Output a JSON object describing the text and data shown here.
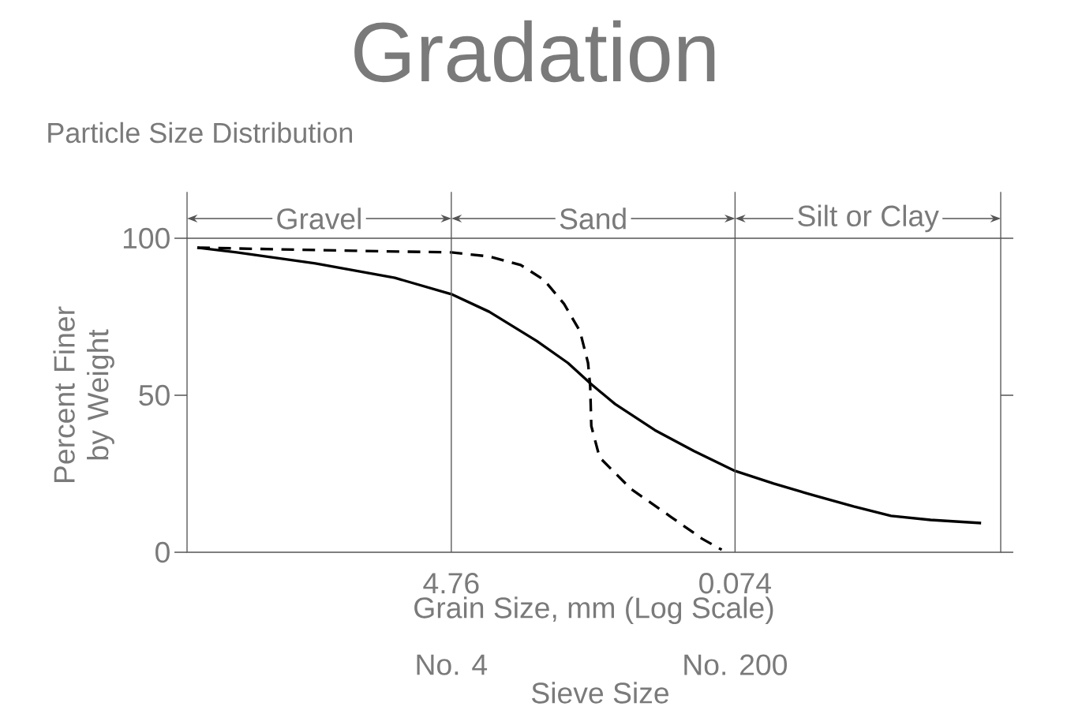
{
  "chart_data": {
    "type": "line",
    "title": "Gradation",
    "subtitle": "Particle Size Distribution",
    "xlabel": "Grain Size, mm (Log Scale)",
    "ylabel": "Percent Finer by Weight",
    "log": "x",
    "xlim": [
      230,
      0.0015
    ],
    "ylim": [
      0,
      100
    ],
    "xticks": [
      4.76,
      0.074
    ],
    "yticks": [
      0,
      50,
      100
    ],
    "ref_lines": [
      {
        "axis": "x",
        "value": 4.76
      },
      {
        "axis": "x",
        "value": 0.074
      }
    ],
    "annotations": [
      "Gravel",
      "Sand",
      "Silt or Clay",
      "No. 4",
      "No. 200",
      "Sieve Size"
    ],
    "series": [
      {
        "color": "#000000",
        "line_style": "solid",
        "x": [
          198,
          111,
          35,
          10.9,
          4.76,
          2.73,
          1.36,
          0.86,
          0.61,
          0.43,
          0.24,
          0.135,
          0.074,
          0.042,
          0.024,
          0.013,
          0.0075,
          0.0042,
          0.002
        ],
        "values": [
          97,
          95.5,
          92,
          87.4,
          82.2,
          76.6,
          67.3,
          60.3,
          53.5,
          47.2,
          38.9,
          32.2,
          25.9,
          21.9,
          18.3,
          14.6,
          11.6,
          10.3,
          9.3
        ]
      },
      {
        "color": "#000000",
        "line_style": "dashed",
        "x": [
          198,
          62,
          19.5,
          4.76,
          2.73,
          1.72,
          1.22,
          0.91,
          0.72,
          0.64,
          0.62,
          0.61,
          0.54,
          0.34,
          0.19,
          0.12,
          0.09
        ],
        "values": [
          97,
          96.5,
          96,
          95.5,
          94.2,
          91.5,
          86.7,
          79.1,
          70.4,
          60.3,
          52.8,
          40.2,
          30.2,
          20.1,
          11.3,
          4.3,
          0.8
        ]
      }
    ]
  }
}
